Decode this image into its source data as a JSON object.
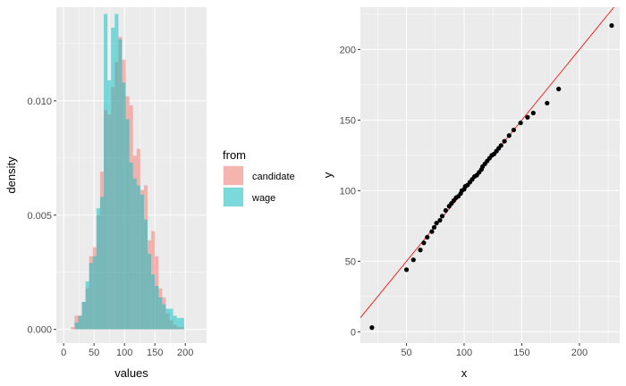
{
  "chart_data": [
    {
      "type": "bar",
      "subtype": "overlapping-histogram",
      "xlabel": "values",
      "ylabel": "density",
      "xlim": [
        -12,
        235
      ],
      "ylim": [
        -0.0006,
        0.0141
      ],
      "xticks": [
        0,
        50,
        100,
        150,
        200
      ],
      "xtick_labels": [
        "0",
        "50",
        "100",
        "150",
        "200"
      ],
      "yticks": [
        0.0,
        0.005,
        0.01
      ],
      "ytick_labels": [
        "0.000",
        "0.005",
        "0.010"
      ],
      "grid": true,
      "bin_width": 6,
      "bin_starts": [
        0,
        6,
        12,
        18,
        24,
        30,
        36,
        42,
        48,
        54,
        60,
        66,
        72,
        78,
        84,
        90,
        96,
        102,
        108,
        114,
        120,
        126,
        132,
        138,
        144,
        150,
        156,
        162,
        168,
        174,
        180,
        186,
        192,
        198,
        204,
        210
      ],
      "legend": {
        "title": "from",
        "position": "right",
        "entries": [
          {
            "label": "candidate",
            "color": "#F8766D"
          },
          {
            "label": "wage",
            "color": "#00BFC4"
          }
        ]
      },
      "series": [
        {
          "name": "candidate",
          "color": "#F8766D",
          "alpha": 0.5,
          "values": [
            0.0,
            0.0,
            0.0001,
            0.0006,
            0.0006,
            0.0012,
            0.0018,
            0.0032,
            0.0036,
            0.005,
            0.0069,
            0.0096,
            0.0094,
            0.0106,
            0.0117,
            0.0128,
            0.0118,
            0.0102,
            0.0098,
            0.0076,
            0.0079,
            0.0061,
            0.0063,
            0.0039,
            0.0043,
            0.0032,
            0.0018,
            0.0014,
            0.0007,
            0.0004,
            0.0002,
            0.0001,
            0.0001,
            0.0,
            0.0,
            0.0
          ]
        },
        {
          "name": "wage",
          "color": "#00BFC4",
          "alpha": 0.5,
          "values": [
            0.0,
            0.0,
            0.0,
            0.0003,
            0.0006,
            0.0012,
            0.0021,
            0.0029,
            0.0032,
            0.0053,
            0.0058,
            0.0138,
            0.0109,
            0.0132,
            0.0138,
            0.0127,
            0.0108,
            0.0092,
            0.0073,
            0.0066,
            0.0063,
            0.0059,
            0.0048,
            0.0033,
            0.0024,
            0.0019,
            0.0014,
            0.0011,
            0.0009,
            0.0009,
            0.0006,
            0.0005,
            0.0005,
            0.0,
            0.0,
            0.0
          ]
        }
      ]
    },
    {
      "type": "scatter",
      "xlabel": "x",
      "ylabel": "y",
      "xlim": [
        10,
        235
      ],
      "ylim": [
        -8,
        230
      ],
      "xticks": [
        50,
        100,
        150,
        200
      ],
      "xtick_labels": [
        "50",
        "100",
        "150",
        "200"
      ],
      "yticks": [
        0,
        50,
        100,
        150,
        200
      ],
      "ytick_labels": [
        "0",
        "50",
        "100",
        "150",
        "200"
      ],
      "grid": true,
      "point_color": "#000000",
      "reference_line": {
        "color": "#FF0000",
        "intercept": 0,
        "slope": 1
      },
      "points": [
        [
          20,
          3
        ],
        [
          50,
          44
        ],
        [
          56,
          51
        ],
        [
          62,
          58
        ],
        [
          65,
          63
        ],
        [
          68,
          67
        ],
        [
          72,
          71
        ],
        [
          74,
          74
        ],
        [
          76,
          77
        ],
        [
          79,
          79
        ],
        [
          81,
          82
        ],
        [
          84,
          86
        ],
        [
          87,
          89
        ],
        [
          89,
          91
        ],
        [
          91,
          93
        ],
        [
          93,
          95
        ],
        [
          95,
          96
        ],
        [
          97,
          98
        ],
        [
          98,
          100
        ],
        [
          100,
          101
        ],
        [
          101,
          103
        ],
        [
          103,
          104
        ],
        [
          105,
          106
        ],
        [
          107,
          108
        ],
        [
          109,
          110
        ],
        [
          111,
          111
        ],
        [
          113,
          113
        ],
        [
          115,
          115
        ],
        [
          116,
          117
        ],
        [
          118,
          119
        ],
        [
          120,
          121
        ],
        [
          122,
          123
        ],
        [
          124,
          125
        ],
        [
          126,
          126
        ],
        [
          128,
          128
        ],
        [
          130,
          130
        ],
        [
          132,
          132
        ],
        [
          135,
          135
        ],
        [
          139,
          139
        ],
        [
          143,
          143
        ],
        [
          149,
          148
        ],
        [
          155,
          152
        ],
        [
          160,
          155
        ],
        [
          172,
          162
        ],
        [
          182,
          172
        ],
        [
          228,
          217
        ]
      ]
    }
  ]
}
